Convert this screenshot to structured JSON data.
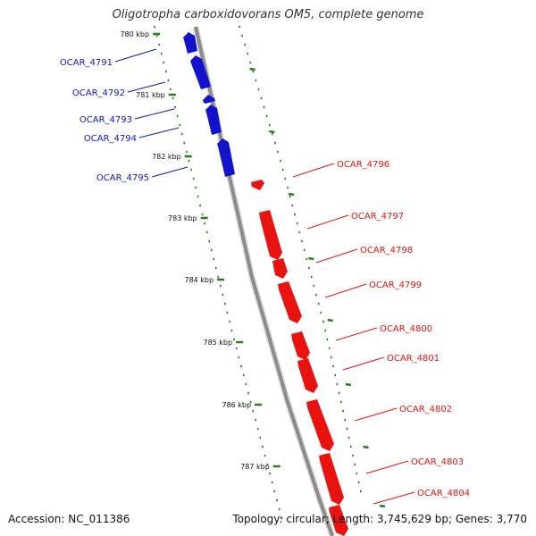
{
  "title": "Oligotropha carboxidovorans OM5, complete genome",
  "accession": "Accession: NC_011386",
  "summary": "Topology: circular; Length: 3,745,629 bp; Genes: 3,770",
  "colors": {
    "forward_strand": "#e8120f",
    "reverse_strand": "#1313cc",
    "backbone": "#8c8c8c",
    "tick": "#2a7a1e"
  },
  "ticks": [
    {
      "label": "780 kbp",
      "kbp": 780
    },
    {
      "label": "781 kbp",
      "kbp": 781
    },
    {
      "label": "782 kbp",
      "kbp": 782
    },
    {
      "label": "783 kbp",
      "kbp": 783
    },
    {
      "label": "784 kbp",
      "kbp": 784
    },
    {
      "label": "785 kbp",
      "kbp": 785
    },
    {
      "label": "786 kbp",
      "kbp": 786
    },
    {
      "label": "787 kbp",
      "kbp": 787
    }
  ],
  "reverse_genes": [
    {
      "label": "OCAR_4791"
    },
    {
      "label": "OCAR_4792"
    },
    {
      "label": "OCAR_4793"
    },
    {
      "label": "OCAR_4794"
    },
    {
      "label": "OCAR_4795"
    }
  ],
  "forward_genes": [
    {
      "label": "OCAR_4796"
    },
    {
      "label": "OCAR_4797"
    },
    {
      "label": "OCAR_4798"
    },
    {
      "label": "OCAR_4799"
    },
    {
      "label": "OCAR_4800"
    },
    {
      "label": "OCAR_4801"
    },
    {
      "label": "OCAR_4802"
    },
    {
      "label": "OCAR_4803"
    },
    {
      "label": "OCAR_4804"
    }
  ]
}
